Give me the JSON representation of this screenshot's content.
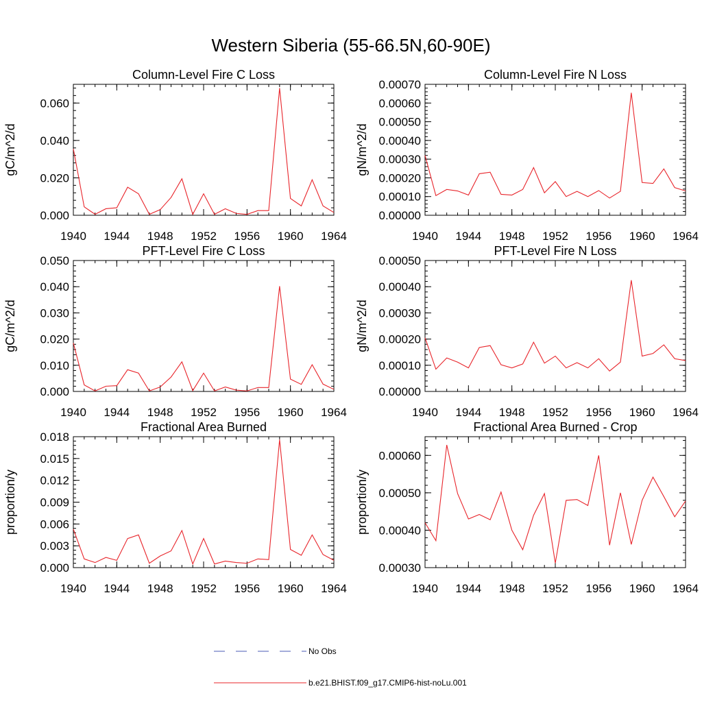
{
  "figure": {
    "title": "Western Siberia (55-66.5N,60-90E)"
  },
  "legend": {
    "placement": "bottom-center",
    "items": [
      {
        "label": "No Obs",
        "color": "#4a5ab4",
        "dash": "dashed"
      },
      {
        "label": "b.e21.BHIST.f09_g17.CMIP6-hist-noLu.001",
        "color": "#e8242a",
        "dash": "solid"
      }
    ]
  },
  "chart_data": [
    {
      "type": "line",
      "title": "Column-Level Fire C Loss",
      "ylabel": "gC/m^2/d",
      "xlim": [
        1940,
        1964
      ],
      "ylim": [
        0,
        0.07
      ],
      "xticks": [
        "1940",
        "1944",
        "1948",
        "1952",
        "1956",
        "1960",
        "1964"
      ],
      "yticks": [
        "0.000",
        "0.020",
        "0.040",
        "0.060"
      ],
      "ytick_values": [
        0,
        0.02,
        0.04,
        0.06
      ],
      "x": [
        1940,
        1941,
        1942,
        1943,
        1944,
        1945,
        1946,
        1947,
        1948,
        1949,
        1950,
        1951,
        1952,
        1953,
        1954,
        1955,
        1956,
        1957,
        1958,
        1959,
        1960,
        1961,
        1962,
        1963,
        1964
      ],
      "series": [
        {
          "color": "#e8242a",
          "values": [
            0.0355,
            0.0045,
            0.0005,
            0.0035,
            0.004,
            0.015,
            0.0115,
            0.0005,
            0.003,
            0.0095,
            0.0195,
            0.0005,
            0.0115,
            0.0005,
            0.0035,
            0.001,
            0.0005,
            0.0025,
            0.0025,
            0.068,
            0.009,
            0.005,
            0.019,
            0.005,
            0.0015
          ]
        }
      ]
    },
    {
      "type": "line",
      "title": "Column-Level Fire N Loss",
      "ylabel": "gN/m^2/d",
      "xlim": [
        1940,
        1964
      ],
      "ylim": [
        0,
        0.0007
      ],
      "xticks": [
        "1940",
        "1944",
        "1948",
        "1952",
        "1956",
        "1960",
        "1964"
      ],
      "yticks": [
        "0.00000",
        "0.00010",
        "0.00020",
        "0.00030",
        "0.00040",
        "0.00050",
        "0.00060",
        "0.00070"
      ],
      "ytick_values": [
        0,
        0.0001,
        0.0002,
        0.0003,
        0.0004,
        0.0005,
        0.0006,
        0.0007
      ],
      "x": [
        1940,
        1941,
        1942,
        1943,
        1944,
        1945,
        1946,
        1947,
        1948,
        1949,
        1950,
        1951,
        1952,
        1953,
        1954,
        1955,
        1956,
        1957,
        1958,
        1959,
        1960,
        1961,
        1962,
        1963,
        1964
      ],
      "series": [
        {
          "color": "#e8242a",
          "values": [
            0.00032,
            0.000105,
            0.000138,
            0.00013,
            0.000108,
            0.000222,
            0.00023,
            0.000112,
            0.000108,
            0.000138,
            0.000255,
            0.00012,
            0.00018,
            0.0001,
            0.000128,
            0.0001,
            0.000132,
            9.2e-05,
            0.000128,
            0.000655,
            0.000175,
            0.00017,
            0.000248,
            0.000148,
            0.00013
          ]
        }
      ]
    },
    {
      "type": "line",
      "title": "PFT-Level Fire C Loss",
      "ylabel": "gC/m^2/d",
      "xlim": [
        1940,
        1964
      ],
      "ylim": [
        0,
        0.05
      ],
      "xticks": [
        "1940",
        "1944",
        "1948",
        "1952",
        "1956",
        "1960",
        "1964"
      ],
      "yticks": [
        "0.000",
        "0.010",
        "0.020",
        "0.030",
        "0.040",
        "0.050"
      ],
      "ytick_values": [
        0,
        0.01,
        0.02,
        0.03,
        0.04,
        0.05
      ],
      "x": [
        1940,
        1941,
        1942,
        1943,
        1944,
        1945,
        1946,
        1947,
        1948,
        1949,
        1950,
        1951,
        1952,
        1953,
        1954,
        1955,
        1956,
        1957,
        1958,
        1959,
        1960,
        1961,
        1962,
        1963,
        1964
      ],
      "series": [
        {
          "color": "#e8242a",
          "values": [
            0.0185,
            0.0025,
            0.0002,
            0.002,
            0.0022,
            0.0083,
            0.007,
            0.0002,
            0.0017,
            0.0055,
            0.0113,
            0.0003,
            0.007,
            0.0002,
            0.0017,
            0.0005,
            0.0002,
            0.0015,
            0.0015,
            0.0402,
            0.0047,
            0.0027,
            0.0102,
            0.0028,
            0.0008
          ]
        }
      ]
    },
    {
      "type": "line",
      "title": "PFT-Level Fire N Loss",
      "ylabel": "gN/m^2/d",
      "xlim": [
        1940,
        1964
      ],
      "ylim": [
        0,
        0.0005
      ],
      "xticks": [
        "1940",
        "1944",
        "1948",
        "1952",
        "1956",
        "1960",
        "1964"
      ],
      "yticks": [
        "0.00000",
        "0.00010",
        "0.00020",
        "0.00030",
        "0.00040",
        "0.00050"
      ],
      "ytick_values": [
        0,
        0.0001,
        0.0002,
        0.0003,
        0.0004,
        0.0005
      ],
      "x": [
        1940,
        1941,
        1942,
        1943,
        1944,
        1945,
        1946,
        1947,
        1948,
        1949,
        1950,
        1951,
        1952,
        1953,
        1954,
        1955,
        1956,
        1957,
        1958,
        1959,
        1960,
        1961,
        1962,
        1963,
        1964
      ],
      "series": [
        {
          "color": "#e8242a",
          "values": [
            0.000205,
            8.5e-05,
            0.000128,
            0.000112,
            9e-05,
            0.000168,
            0.000175,
            0.000102,
            9e-05,
            0.000105,
            0.000188,
            0.000108,
            0.000135,
            9e-05,
            0.00011,
            9e-05,
            0.000125,
            7.8e-05,
            0.000112,
            0.000425,
            0.000135,
            0.000145,
            0.000178,
            0.000125,
            0.000118
          ]
        }
      ]
    },
    {
      "type": "line",
      "title": "Fractional Area Burned",
      "ylabel": "proportion/y",
      "xlim": [
        1940,
        1964
      ],
      "ylim": [
        0,
        0.018
      ],
      "xticks": [
        "1940",
        "1944",
        "1948",
        "1952",
        "1956",
        "1960",
        "1964"
      ],
      "yticks": [
        "0.000",
        "0.003",
        "0.006",
        "0.009",
        "0.012",
        "0.015",
        "0.018"
      ],
      "ytick_values": [
        0,
        0.003,
        0.006,
        0.009,
        0.012,
        0.015,
        0.018
      ],
      "x": [
        1940,
        1941,
        1942,
        1943,
        1944,
        1945,
        1946,
        1947,
        1948,
        1949,
        1950,
        1951,
        1952,
        1953,
        1954,
        1955,
        1956,
        1957,
        1958,
        1959,
        1960,
        1961,
        1962,
        1963,
        1964
      ],
      "series": [
        {
          "color": "#e8242a",
          "values": [
            0.0053,
            0.0012,
            0.0007,
            0.0014,
            0.001,
            0.004,
            0.0045,
            0.0006,
            0.0016,
            0.0023,
            0.0051,
            0.0005,
            0.004,
            0.0005,
            0.0009,
            0.0007,
            0.0006,
            0.0012,
            0.0011,
            0.0176,
            0.0025,
            0.0017,
            0.0045,
            0.0018,
            0.001
          ]
        }
      ]
    },
    {
      "type": "line",
      "title": "Fractional Area Burned - Crop",
      "ylabel": "proportion/y",
      "xlim": [
        1940,
        1964
      ],
      "ylim": [
        0.0003,
        0.00065
      ],
      "xticks": [
        "1940",
        "1944",
        "1948",
        "1952",
        "1956",
        "1960",
        "1964"
      ],
      "yticks": [
        "0.00030",
        "0.00040",
        "0.00050",
        "0.00060"
      ],
      "ytick_values": [
        0.0003,
        0.0004,
        0.0005,
        0.0006
      ],
      "x": [
        1940,
        1941,
        1942,
        1943,
        1944,
        1945,
        1946,
        1947,
        1948,
        1949,
        1950,
        1951,
        1952,
        1953,
        1954,
        1955,
        1956,
        1957,
        1958,
        1959,
        1960,
        1961,
        1962,
        1963,
        1964
      ],
      "series": [
        {
          "color": "#e8242a",
          "values": [
            0.00042,
            0.000372,
            0.000628,
            0.000498,
            0.00043,
            0.000442,
            0.000428,
            0.000502,
            0.0004,
            0.000348,
            0.00044,
            0.000498,
            0.000312,
            0.00048,
            0.000482,
            0.000466,
            0.0006,
            0.00036,
            0.0005,
            0.000362,
            0.00048,
            0.000542,
            0.00049,
            0.000436,
            0.000478
          ]
        }
      ]
    }
  ]
}
